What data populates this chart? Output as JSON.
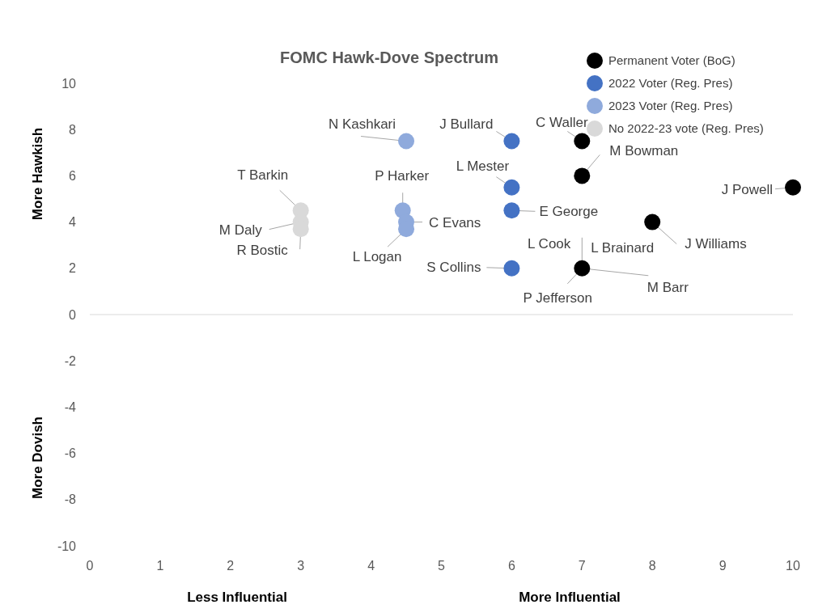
{
  "chart_data": {
    "type": "scatter",
    "title": "FOMC Hawk-Dove Spectrum",
    "xlim": [
      0,
      10
    ],
    "xticks": [
      0,
      1,
      2,
      3,
      4,
      5,
      6,
      7,
      8,
      9,
      10
    ],
    "ylim": [
      -10,
      10
    ],
    "yticks": [
      -10,
      -8,
      -6,
      -4,
      -2,
      0,
      2,
      4,
      6,
      8,
      10
    ],
    "ref_lines": [
      {
        "axis": "y",
        "value": 0,
        "color": "#d9d9d9"
      }
    ],
    "legend": "top right",
    "marker": "circle",
    "series": [
      {
        "name": "Permanent Voter (BoG)",
        "color": "#000000",
        "x": [
          7,
          7,
          10,
          8,
          7
        ],
        "values": [
          7.5,
          6,
          5.5,
          4,
          2
        ]
      },
      {
        "name": "2022 Voter (Reg. Pres)",
        "color": "#4472c4",
        "x": [
          6,
          6,
          6,
          6
        ],
        "values": [
          7.5,
          5.5,
          4.5,
          2
        ]
      },
      {
        "name": "2023 Voter (Reg. Pres)",
        "color": "#8faadc",
        "x": [
          4.5,
          4.45,
          4.5,
          4.5
        ],
        "values": [
          7.5,
          4.5,
          4,
          3.7
        ]
      },
      {
        "name": "No 2022-23 vote (Reg. Pres)",
        "color": "#d9d9d9",
        "x": [
          3,
          3,
          3
        ],
        "values": [
          4.5,
          4,
          3.7
        ]
      }
    ],
    "annotations": [
      {
        "text": "N Kashkari",
        "x": 4.5,
        "y": 7.5
      },
      {
        "text": "J Bullard",
        "x": 6,
        "y": 7.5
      },
      {
        "text": "C Waller",
        "x": 7,
        "y": 7.5
      },
      {
        "text": "M Bowman",
        "x": 7,
        "y": 6
      },
      {
        "text": "J Powell",
        "x": 10,
        "y": 5.5
      },
      {
        "text": "L Mester",
        "x": 6,
        "y": 5.5
      },
      {
        "text": "E George",
        "x": 6,
        "y": 4.5
      },
      {
        "text": "J Williams",
        "x": 8,
        "y": 4
      },
      {
        "text": "L Brainard",
        "x": 7,
        "y": 2
      },
      {
        "text": "L Cook",
        "x": 7,
        "y": 2
      },
      {
        "text": "P Jefferson",
        "x": 7,
        "y": 2
      },
      {
        "text": "M Barr",
        "x": 7,
        "y": 2
      },
      {
        "text": "S Collins",
        "x": 6,
        "y": 2
      },
      {
        "text": "P Harker",
        "x": 4.45,
        "y": 4.5
      },
      {
        "text": "C Evans",
        "x": 4.5,
        "y": 4
      },
      {
        "text": "L Logan",
        "x": 4.5,
        "y": 3.7
      },
      {
        "text": "T Barkin",
        "x": 3,
        "y": 4.5
      },
      {
        "text": "M Daly",
        "x": 3,
        "y": 4
      },
      {
        "text": "R Bostic",
        "x": 3,
        "y": 3.7
      },
      "More Hawkish",
      "More Dovish",
      "Less Influential",
      "More Influential"
    ]
  }
}
